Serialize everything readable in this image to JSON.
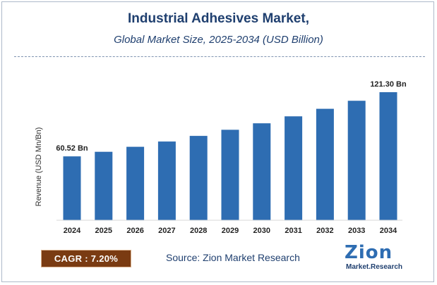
{
  "header": {
    "title": "Industrial Adhesives Market,",
    "subtitle": "Global Market Size, 2025-2034 (USD Billion)"
  },
  "chart_data": {
    "type": "bar",
    "categories": [
      "2024",
      "2025",
      "2026",
      "2027",
      "2028",
      "2029",
      "2030",
      "2031",
      "2032",
      "2033",
      "2034"
    ],
    "values": [
      60.52,
      64.88,
      69.55,
      74.56,
      79.93,
      85.69,
      91.86,
      98.47,
      105.56,
      113.16,
      121.3
    ],
    "data_labels": [
      {
        "index": 0,
        "text": "60.52 Bn"
      },
      {
        "index": 10,
        "text": "121.30 Bn"
      }
    ],
    "ylabel": "Revenue (USD Mn/Bn)",
    "xlabel": "",
    "bar_color": "#2e6db2",
    "grid": false
  },
  "footer": {
    "cagr": "CAGR : 7.20%",
    "source": "Source: Zion Market Research",
    "logo_big": "Zion",
    "logo_small": "Market.Research"
  },
  "colors": {
    "title": "#1f3f6f",
    "cagr_bg": "#7a3b12"
  }
}
